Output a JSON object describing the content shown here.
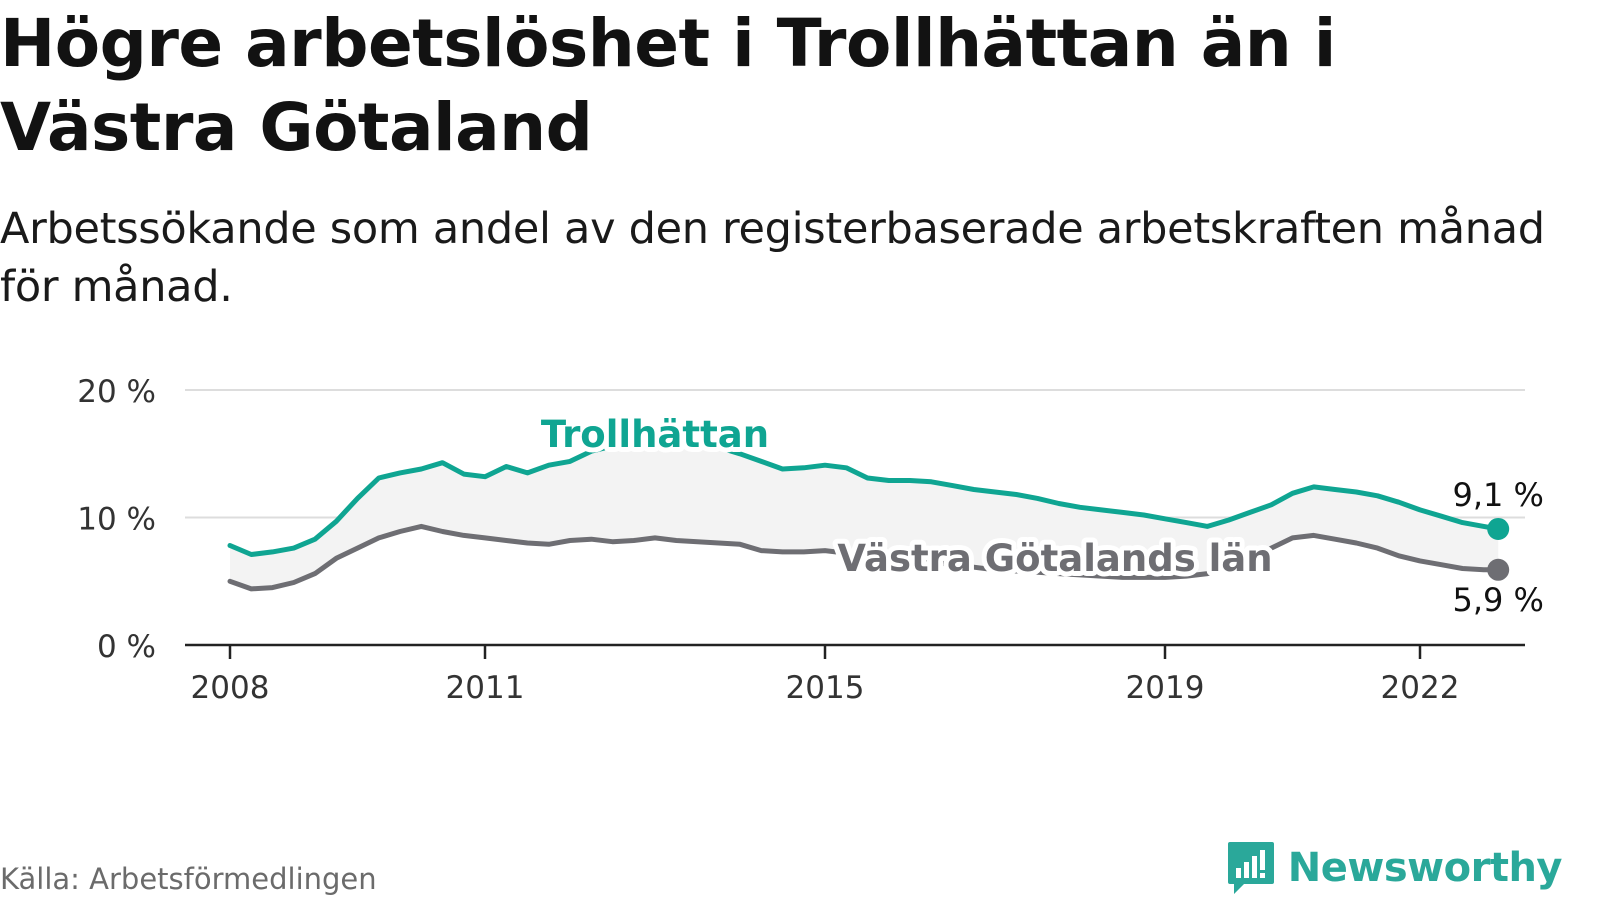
{
  "header": {
    "title": "Högre arbetslöshet i Trollhättan än i Västra Götaland",
    "subtitle": "Arbetssökande som andel av den registerbaserade arbetskraften månad för månad."
  },
  "footer": {
    "source": "Källa: Arbetsförmedlingen",
    "brand": "Newsworthy"
  },
  "colors": {
    "trollhattan": "#0fa592",
    "vastra_gotaland": "#6e6e73",
    "area_fill": "#f3f3f3",
    "grid": "#dddddd",
    "axis": "#222222"
  },
  "chart_data": {
    "type": "line",
    "title": "Högre arbetslöshet i Trollhättan än i Västra Götaland",
    "subtitle": "Arbetssökande som andel av den registerbaserade arbetskraften månad för månad.",
    "xlabel": "",
    "ylabel": "",
    "xlim": [
      2008,
      2023
    ],
    "ylim": [
      0,
      20
    ],
    "yticks": [
      {
        "value": 0,
        "label": "0 %"
      },
      {
        "value": 10,
        "label": "10 %"
      },
      {
        "value": 20,
        "label": "20 %"
      }
    ],
    "xticks": [
      {
        "value": 2008,
        "label": "2008"
      },
      {
        "value": 2011,
        "label": "2011"
      },
      {
        "value": 2015,
        "label": "2015"
      },
      {
        "value": 2019,
        "label": "2019"
      },
      {
        "value": 2022,
        "label": "2022"
      }
    ],
    "grid": true,
    "series": [
      {
        "name": "Trollhättan",
        "label": "Trollhättan",
        "end_label": "9,1 %",
        "points": [
          [
            2008.0,
            7.8
          ],
          [
            2008.25,
            7.1
          ],
          [
            2008.5,
            7.3
          ],
          [
            2008.75,
            7.6
          ],
          [
            2009.0,
            8.3
          ],
          [
            2009.25,
            9.7
          ],
          [
            2009.5,
            11.5
          ],
          [
            2009.75,
            13.1
          ],
          [
            2010.0,
            13.5
          ],
          [
            2010.25,
            13.8
          ],
          [
            2010.5,
            14.3
          ],
          [
            2010.75,
            13.4
          ],
          [
            2011.0,
            13.2
          ],
          [
            2011.25,
            14.0
          ],
          [
            2011.5,
            13.5
          ],
          [
            2011.75,
            14.1
          ],
          [
            2012.0,
            14.4
          ],
          [
            2012.25,
            15.2
          ],
          [
            2012.5,
            15.6
          ],
          [
            2012.75,
            15.8
          ],
          [
            2013.0,
            16.0
          ],
          [
            2013.25,
            16.2
          ],
          [
            2013.5,
            15.9
          ],
          [
            2013.75,
            15.5
          ],
          [
            2014.0,
            15.0
          ],
          [
            2014.25,
            14.4
          ],
          [
            2014.5,
            13.8
          ],
          [
            2014.75,
            13.9
          ],
          [
            2015.0,
            14.1
          ],
          [
            2015.25,
            13.9
          ],
          [
            2015.5,
            13.1
          ],
          [
            2015.75,
            12.9
          ],
          [
            2016.0,
            12.9
          ],
          [
            2016.25,
            12.8
          ],
          [
            2016.5,
            12.5
          ],
          [
            2016.75,
            12.2
          ],
          [
            2017.0,
            12.0
          ],
          [
            2017.25,
            11.8
          ],
          [
            2017.5,
            11.5
          ],
          [
            2017.75,
            11.1
          ],
          [
            2018.0,
            10.8
          ],
          [
            2018.25,
            10.6
          ],
          [
            2018.5,
            10.4
          ],
          [
            2018.75,
            10.2
          ],
          [
            2019.0,
            9.9
          ],
          [
            2019.25,
            9.6
          ],
          [
            2019.5,
            9.3
          ],
          [
            2019.75,
            9.8
          ],
          [
            2020.0,
            10.4
          ],
          [
            2020.25,
            11.0
          ],
          [
            2020.5,
            11.9
          ],
          [
            2020.75,
            12.4
          ],
          [
            2021.0,
            12.2
          ],
          [
            2021.25,
            12.0
          ],
          [
            2021.5,
            11.7
          ],
          [
            2021.75,
            11.2
          ],
          [
            2022.0,
            10.6
          ],
          [
            2022.25,
            10.1
          ],
          [
            2022.5,
            9.6
          ],
          [
            2022.75,
            9.3
          ],
          [
            2022.92,
            9.1
          ]
        ]
      },
      {
        "name": "Västra Götalands län",
        "label": "Västra Götalands län",
        "end_label": "5,9 %",
        "points": [
          [
            2008.0,
            5.0
          ],
          [
            2008.25,
            4.4
          ],
          [
            2008.5,
            4.5
          ],
          [
            2008.75,
            4.9
          ],
          [
            2009.0,
            5.6
          ],
          [
            2009.25,
            6.8
          ],
          [
            2009.5,
            7.6
          ],
          [
            2009.75,
            8.4
          ],
          [
            2010.0,
            8.9
          ],
          [
            2010.25,
            9.3
          ],
          [
            2010.5,
            8.9
          ],
          [
            2010.75,
            8.6
          ],
          [
            2011.0,
            8.4
          ],
          [
            2011.25,
            8.2
          ],
          [
            2011.5,
            8.0
          ],
          [
            2011.75,
            7.9
          ],
          [
            2012.0,
            8.2
          ],
          [
            2012.25,
            8.3
          ],
          [
            2012.5,
            8.1
          ],
          [
            2012.75,
            8.2
          ],
          [
            2013.0,
            8.4
          ],
          [
            2013.25,
            8.2
          ],
          [
            2013.5,
            8.1
          ],
          [
            2013.75,
            8.0
          ],
          [
            2014.0,
            7.9
          ],
          [
            2014.25,
            7.4
          ],
          [
            2014.5,
            7.3
          ],
          [
            2014.75,
            7.3
          ],
          [
            2015.0,
            7.4
          ],
          [
            2015.25,
            7.2
          ],
          [
            2015.5,
            7.0
          ],
          [
            2015.75,
            6.8
          ],
          [
            2016.0,
            6.6
          ],
          [
            2016.25,
            6.5
          ],
          [
            2016.5,
            6.3
          ],
          [
            2016.75,
            6.1
          ],
          [
            2017.0,
            5.9
          ],
          [
            2017.25,
            5.8
          ],
          [
            2017.5,
            5.7
          ],
          [
            2017.75,
            5.6
          ],
          [
            2018.0,
            5.5
          ],
          [
            2018.25,
            5.4
          ],
          [
            2018.5,
            5.3
          ],
          [
            2018.75,
            5.3
          ],
          [
            2019.0,
            5.3
          ],
          [
            2019.25,
            5.4
          ],
          [
            2019.5,
            5.6
          ],
          [
            2019.75,
            6.0
          ],
          [
            2020.0,
            6.8
          ],
          [
            2020.25,
            7.6
          ],
          [
            2020.5,
            8.4
          ],
          [
            2020.75,
            8.6
          ],
          [
            2021.0,
            8.3
          ],
          [
            2021.25,
            8.0
          ],
          [
            2021.5,
            7.6
          ],
          [
            2021.75,
            7.0
          ],
          [
            2022.0,
            6.6
          ],
          [
            2022.25,
            6.3
          ],
          [
            2022.5,
            6.0
          ],
          [
            2022.75,
            5.9
          ],
          [
            2022.92,
            5.9
          ]
        ]
      }
    ]
  }
}
